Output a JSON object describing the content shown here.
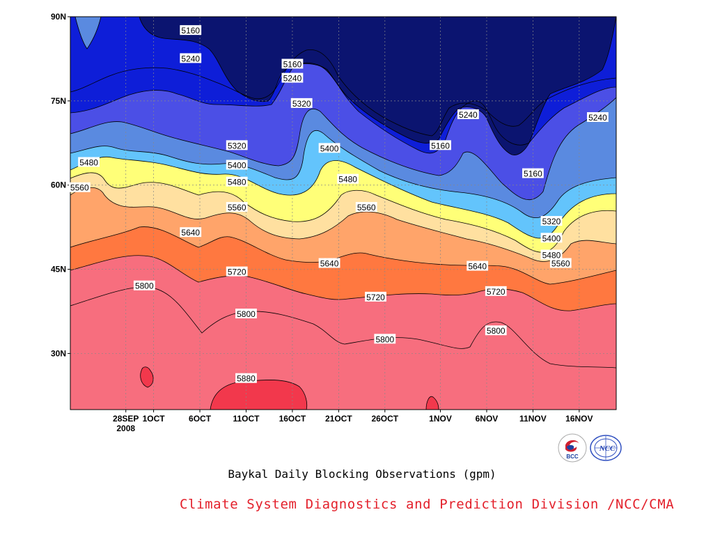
{
  "chart_data": {
    "type": "contour",
    "title": "Baykal Daily Blocking Observations (gpm)",
    "credit": "Climate System Diagnostics and Prediction Division /NCC/CMA",
    "x_axis": {
      "type": "date",
      "ticks": [
        "28SEP\n2008",
        "1OCT",
        "6OCT",
        "11OCT",
        "16OCT",
        "21OCT",
        "26OCT",
        "1NOV",
        "6NOV",
        "11NOV",
        "16NOV"
      ],
      "tick_dates": [
        "2008-09-28",
        "2008-10-01",
        "2008-10-06",
        "2008-10-11",
        "2008-10-16",
        "2008-10-21",
        "2008-10-26",
        "2008-11-01",
        "2008-11-06",
        "2008-11-11",
        "2008-11-16"
      ]
    },
    "y_axis": {
      "ticks": [
        "30N",
        "45N",
        "60N",
        "75N",
        "90N"
      ],
      "tick_values": [
        30,
        45,
        60,
        75,
        90
      ],
      "range": [
        20,
        90
      ]
    },
    "grid": "dashed",
    "levels": [
      5160,
      5240,
      5320,
      5400,
      5480,
      5560,
      5640,
      5720,
      5800,
      5880
    ],
    "band_colors": [
      "#0b1470",
      "#0e1ed8",
      "#4b4fe6",
      "#5a8ae0",
      "#63c4fc",
      "#ffff78",
      "#ffe0a0",
      "#ffa46a",
      "#ff7840",
      "#f76e7e",
      "#f2384c"
    ],
    "contour_labels": [
      "5160",
      "5160",
      "5160",
      "5160",
      "5240",
      "5240",
      "5240",
      "5240",
      "5320",
      "5320",
      "5320",
      "5400",
      "5400",
      "5400",
      "5480",
      "5480",
      "5480",
      "5480",
      "5560",
      "5560",
      "5560",
      "5560",
      "5640",
      "5640",
      "5640",
      "5720",
      "5720",
      "5720",
      "5800",
      "5800",
      "5800",
      "5800",
      "5880"
    ],
    "logos": [
      "bcc-logo",
      "ncc-logo"
    ],
    "logo_text": [
      "BCC",
      "NCC"
    ]
  }
}
